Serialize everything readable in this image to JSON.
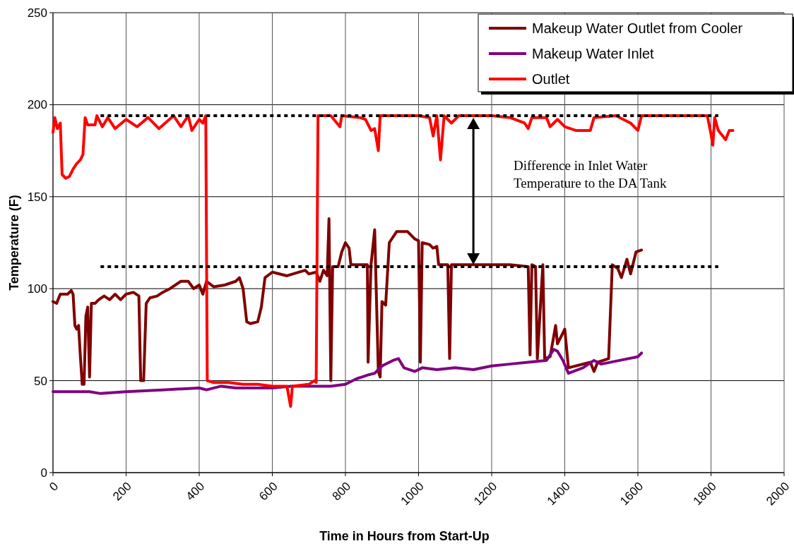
{
  "chart_data": {
    "type": "line",
    "xlabel": "Time in Hours from Start-Up",
    "ylabel": "Temperature (F)",
    "xlim": [
      0,
      2000
    ],
    "xticks": [
      0,
      200,
      400,
      600,
      800,
      1000,
      1200,
      1400,
      1600,
      1800,
      2000
    ],
    "ylim": [
      0,
      250
    ],
    "yticks": [
      0,
      50,
      100,
      150,
      200,
      250
    ],
    "grid": true,
    "legend": "top right",
    "line_style": "solid",
    "annotations": [
      "Difference in Inlet Water Temperature to the DA Tank"
    ],
    "series": [
      {
        "name": "Makeup Water Outlet from Cooler",
        "color": "#800000",
        "x": [
          0,
          10,
          20,
          40,
          50,
          55,
          60,
          65,
          70,
          75,
          80,
          85,
          90,
          95,
          100,
          105,
          115,
          125,
          140,
          155,
          170,
          185,
          200,
          220,
          235,
          240,
          248,
          255,
          265,
          285,
          300,
          320,
          350,
          370,
          385,
          400,
          410,
          420,
          440,
          470,
          500,
          510,
          520,
          530,
          540,
          560,
          570,
          580,
          600,
          640,
          690,
          700,
          720,
          730,
          740,
          750,
          755,
          760,
          765,
          780,
          790,
          800,
          810,
          815,
          840,
          860,
          862,
          870,
          880,
          890,
          895,
          900,
          910,
          920,
          940,
          970,
          990,
          1000,
          1005,
          1010,
          1030,
          1040,
          1050,
          1055,
          1080,
          1085,
          1090,
          1200,
          1250,
          1300,
          1305,
          1310,
          1320,
          1325,
          1340,
          1345,
          1360,
          1375,
          1380,
          1400,
          1410,
          1470,
          1480,
          1490,
          1520,
          1530,
          1545,
          1555,
          1570,
          1580,
          1595,
          1610
        ],
        "values": [
          93,
          92,
          97,
          97,
          99,
          97,
          80,
          78,
          80,
          63,
          48,
          48,
          85,
          90,
          52,
          92,
          92,
          94,
          96,
          94,
          97,
          94,
          97,
          98,
          96,
          50,
          50,
          92,
          95,
          96,
          98,
          100,
          104,
          104,
          100,
          102,
          97,
          104,
          101,
          102,
          104,
          106,
          100,
          82,
          81,
          82,
          90,
          106,
          109,
          107,
          110,
          108,
          109,
          104,
          110,
          107,
          138,
          50,
          112,
          112,
          120,
          125,
          122,
          113,
          113,
          113,
          60,
          113,
          132,
          55,
          52,
          93,
          91,
          125,
          131,
          131,
          127,
          126,
          60,
          125,
          124,
          122,
          123,
          113,
          113,
          62,
          113,
          113,
          113,
          112,
          64,
          113,
          112,
          62,
          113,
          62,
          63,
          80,
          70,
          78,
          57,
          60,
          55,
          60,
          62,
          113,
          111,
          106,
          116,
          108,
          120,
          121
        ]
      },
      {
        "name": "Makeup Water Inlet",
        "color": "#800080",
        "x": [
          0,
          50,
          100,
          130,
          200,
          300,
          400,
          420,
          460,
          500,
          600,
          650,
          700,
          760,
          800,
          830,
          860,
          880,
          900,
          930,
          945,
          960,
          990,
          1010,
          1050,
          1100,
          1150,
          1200,
          1250,
          1300,
          1350,
          1370,
          1380,
          1395,
          1410,
          1450,
          1480,
          1500,
          1550,
          1600,
          1610
        ],
        "values": [
          44,
          44,
          44,
          43,
          44,
          45,
          46,
          45,
          47,
          46,
          46,
          47,
          47,
          47,
          48,
          51,
          53,
          54,
          58,
          61,
          62,
          57,
          55,
          57,
          56,
          57,
          56,
          58,
          59,
          60,
          61,
          67,
          66,
          61,
          54,
          57,
          61,
          59,
          61,
          63,
          65
        ]
      },
      {
        "name": "Outlet",
        "color": "#ff0000",
        "x": [
          0,
          5,
          12,
          20,
          25,
          35,
          45,
          55,
          65,
          75,
          82,
          88,
          95,
          115,
          120,
          135,
          150,
          170,
          200,
          230,
          260,
          290,
          330,
          350,
          370,
          380,
          400,
          410,
          418,
          422,
          440,
          480,
          520,
          560,
          600,
          640,
          650,
          655,
          700,
          715,
          720,
          725,
          760,
          785,
          790,
          840,
          855,
          870,
          880,
          890,
          895,
          960,
          1000,
          1030,
          1040,
          1050,
          1060,
          1070,
          1090,
          1110,
          1200,
          1250,
          1290,
          1300,
          1310,
          1350,
          1360,
          1380,
          1400,
          1430,
          1470,
          1480,
          1540,
          1580,
          1600,
          1610,
          1700,
          1790,
          1800,
          1805,
          1810,
          1820,
          1840,
          1850,
          1860
        ],
        "values": [
          185,
          193,
          187,
          190,
          162,
          160,
          161,
          165,
          168,
          170,
          173,
          193,
          189,
          189,
          194,
          188,
          193,
          187,
          192,
          188,
          193,
          187,
          194,
          188,
          194,
          186,
          192,
          190,
          194,
          50,
          49,
          49,
          48,
          48,
          47,
          47,
          36,
          47,
          48,
          50,
          49,
          194,
          194,
          188,
          194,
          193,
          192,
          186,
          187,
          175,
          194,
          194,
          194,
          193,
          183,
          194,
          170,
          194,
          190,
          194,
          194,
          193,
          190,
          187,
          193,
          193,
          188,
          192,
          188,
          186,
          186,
          193,
          194,
          190,
          186,
          194,
          194,
          194,
          184,
          178,
          193,
          186,
          181,
          186,
          186
        ]
      },
      {
        "color": "#000000",
        "line_style": "dotted",
        "x": [
          130,
          1820
        ],
        "values": [
          194,
          194
        ]
      },
      {
        "color": "#000000",
        "line_style": "dotted",
        "x": [
          130,
          1820
        ],
        "values": [
          112,
          112
        ]
      }
    ]
  }
}
